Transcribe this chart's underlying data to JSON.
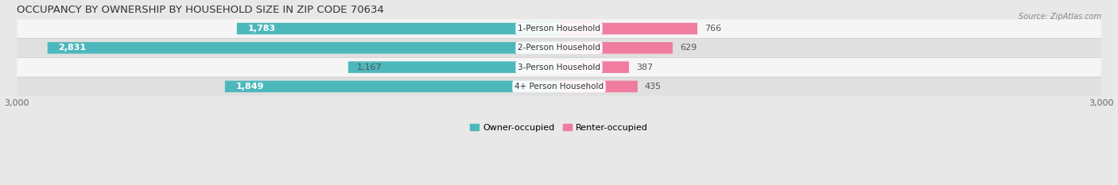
{
  "title": "OCCUPANCY BY OWNERSHIP BY HOUSEHOLD SIZE IN ZIP CODE 70634",
  "source": "Source: ZipAtlas.com",
  "categories": [
    "1-Person Household",
    "2-Person Household",
    "3-Person Household",
    "4+ Person Household"
  ],
  "owner_values": [
    1783,
    2831,
    1167,
    1849
  ],
  "renter_values": [
    766,
    629,
    387,
    435
  ],
  "owner_color": "#4db8bc",
  "renter_color": "#f07ca0",
  "renter_color_light": "#f5a0be",
  "axis_max": 3000,
  "bar_height": 0.6,
  "background_color": "#e8e8e8",
  "row_bg_light": "#f5f5f5",
  "row_bg_dark": "#e0e0e0",
  "title_fontsize": 9.5,
  "label_fontsize": 8,
  "tick_fontsize": 8,
  "legend_fontsize": 8,
  "source_fontsize": 7
}
